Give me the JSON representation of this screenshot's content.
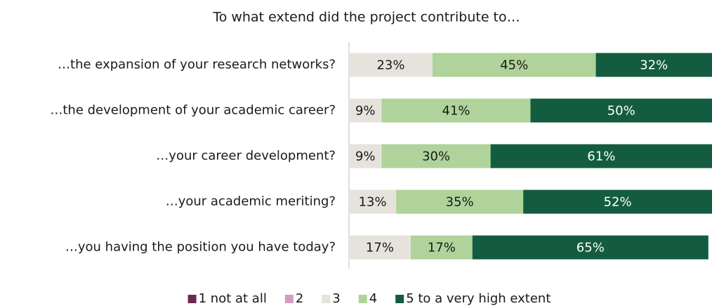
{
  "chart_data": {
    "type": "stacked_bar_horizontal",
    "title": "To what extend did the project contribute to…",
    "categories": [
      "…the expansion of your research networks?",
      "…the development of your academic career?",
      "…your career development?",
      "…your academic meriting?",
      "…you having the position you have today?"
    ],
    "xlim": [
      0,
      100
    ],
    "legend": "bottom",
    "series": [
      {
        "name": "1 not at all",
        "color": "#6b2a4e",
        "values": [
          0,
          0,
          0,
          0,
          0
        ]
      },
      {
        "name": "2",
        "color": "#d49bc4",
        "values": [
          0,
          0,
          0,
          0,
          0
        ]
      },
      {
        "name": "3",
        "color": "#e6e3dc",
        "values": [
          23,
          9,
          9,
          13,
          17
        ],
        "value_labels": [
          "23%",
          "9%",
          "9%",
          "13%",
          "17%"
        ]
      },
      {
        "name": "4",
        "color": "#afd39a",
        "values": [
          45,
          41,
          30,
          35,
          17
        ],
        "value_labels": [
          "45%",
          "41%",
          "30%",
          "35%",
          "17%"
        ]
      },
      {
        "name": "5 to a very high extent",
        "color": "#135c40",
        "values": [
          32,
          50,
          61,
          52,
          65
        ],
        "value_labels": [
          "32%",
          "50%",
          "61%",
          "52%",
          "65%"
        ]
      }
    ]
  }
}
